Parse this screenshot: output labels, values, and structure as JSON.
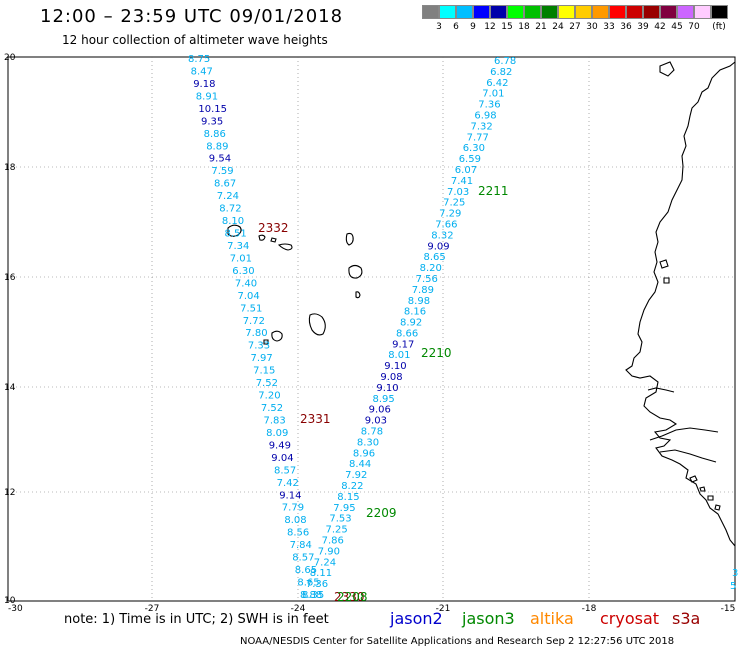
{
  "title": "12:00 – 23:59 UTC 09/01/2018",
  "subtitle": "12 hour collection of altimeter wave heights",
  "legend": {
    "unit": "(ft)",
    "colors": [
      "#808080",
      "#00ffff",
      "#00bfff",
      "#0000ff",
      "#0000aa",
      "#00ff00",
      "#00c000",
      "#008000",
      "#ffff00",
      "#ffcc00",
      "#ff9900",
      "#ff0000",
      "#cc0000",
      "#990000",
      "#800040",
      "#cc66ff",
      "#ffccff",
      "#000000"
    ],
    "labels": [
      "3",
      "6",
      "9",
      "12",
      "15",
      "18",
      "21",
      "24",
      "27",
      "30",
      "33",
      "36",
      "39",
      "42",
      "45",
      "70"
    ]
  },
  "axes": {
    "x_ticks": [
      "-30",
      "-27",
      "-24",
      "-21",
      "-18",
      "-15"
    ],
    "y_ticks": [
      "20",
      "18",
      "16",
      "14",
      "12",
      "10"
    ]
  },
  "tracks": [
    {
      "pass": "2332",
      "pass_color": "#880000",
      "values": [
        "8.75",
        "8.47",
        "9.18",
        "8.91",
        "10.15",
        "9.35",
        "8.86",
        "8.89",
        "9.54",
        "7.59",
        "8.67",
        "7.24",
        "8.72",
        "8.10",
        "8.51",
        "7.34",
        "7.01",
        "6.30",
        "7.40",
        "7.04",
        "7.51",
        "7.72",
        "7.80",
        "7.33",
        "7.97",
        "7.15",
        "7.52",
        "7.20",
        "7.52",
        "7.83",
        "8.09",
        "9.49",
        "9.04",
        "8.57",
        "7.42",
        "9.14",
        "7.79",
        "8.08",
        "8.56",
        "7.84",
        "8.57",
        "8.65",
        "8.65",
        "8.88"
      ]
    },
    {
      "pass": "2331",
      "pass_color": "#880000"
    },
    {
      "pass": "2211",
      "pass_color": "#008800",
      "values": [
        "6.78",
        "6.82",
        "6.42",
        "7.01",
        "7.36",
        "6.98",
        "7.32",
        "7.77",
        "6.30",
        "6.59",
        "6.07",
        "7.41",
        "7.03",
        "7.25",
        "7.29",
        "7.66",
        "8.32",
        "9.09",
        "8.65",
        "8.20",
        "7.56",
        "7.89",
        "8.98",
        "8.16",
        "8.92",
        "8.66",
        "9.17",
        "8.01",
        "9.10",
        "9.08",
        "9.10",
        "8.95",
        "9.06",
        "9.03",
        "8.78",
        "8.30",
        "8.96",
        "8.44",
        "7.92",
        "8.22",
        "8.15",
        "7.95",
        "7.53",
        "7.25",
        "7.86",
        "7.90",
        "7.24",
        "8.11",
        "7.36",
        "8.35"
      ]
    },
    {
      "pass": "2210",
      "pass_color": "#008800"
    },
    {
      "pass": "2209",
      "pass_color": "#008800"
    },
    {
      "pass": "2330",
      "pass_color": "#880000"
    },
    {
      "pass": "2208",
      "pass_color": "#008800"
    }
  ],
  "edge_values": [
    "3",
    "5"
  ],
  "note": "note:  1) Time is in UTC;  2) SWH is in feet",
  "satellites": {
    "jason2": "jason2",
    "jason3": "jason3",
    "altika": "altika",
    "cryosat": "cryosat",
    "s3a": "s3a"
  },
  "credit": "NOAA/NESDIS Center for Satellite Applications and Research     Sep  2 12:27:56 UTC 2018"
}
